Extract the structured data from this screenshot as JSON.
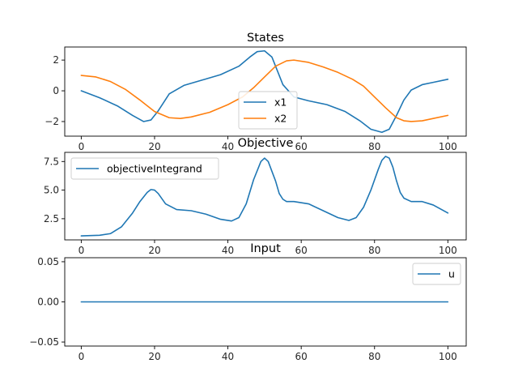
{
  "chart_data": [
    {
      "type": "line",
      "title": "States",
      "xlabel": "",
      "ylabel": "",
      "xlim": [
        -4.5,
        105
      ],
      "ylim": [
        -2.95,
        2.85
      ],
      "xticks": [
        0,
        20,
        40,
        60,
        80,
        100
      ],
      "yticks": [
        -2,
        0,
        2
      ],
      "legend": "bottom-center",
      "grid": false,
      "series": [
        {
          "name": "x1",
          "color": "#1f77b4",
          "x": [
            0,
            5,
            10,
            14,
            17,
            19,
            21,
            24,
            28,
            33,
            38,
            43,
            46,
            48,
            50,
            52,
            55,
            58,
            62,
            67,
            72,
            76,
            79,
            82,
            84,
            86,
            88,
            90,
            93,
            96,
            100
          ],
          "y": [
            0,
            -0.45,
            -1.0,
            -1.6,
            -2.0,
            -1.9,
            -1.3,
            -0.2,
            0.35,
            0.7,
            1.05,
            1.6,
            2.2,
            2.55,
            2.6,
            2.2,
            0.4,
            -0.4,
            -0.65,
            -0.9,
            -1.35,
            -1.95,
            -2.5,
            -2.7,
            -2.5,
            -1.6,
            -0.6,
            0.05,
            0.4,
            0.55,
            0.75
          ]
        },
        {
          "name": "x2",
          "color": "#ff7f0e",
          "x": [
            0,
            4,
            8,
            12,
            16,
            20,
            24,
            27,
            30,
            35,
            40,
            44,
            47,
            50,
            53,
            56,
            58,
            62,
            66,
            70,
            74,
            77,
            80,
            83,
            86,
            88,
            90,
            93,
            96,
            100
          ],
          "y": [
            1.0,
            0.9,
            0.6,
            0.1,
            -0.6,
            -1.35,
            -1.75,
            -1.8,
            -1.7,
            -1.4,
            -0.9,
            -0.4,
            0.2,
            0.9,
            1.6,
            1.95,
            2.0,
            1.85,
            1.55,
            1.2,
            0.75,
            0.3,
            -0.4,
            -1.1,
            -1.75,
            -1.95,
            -2.0,
            -1.95,
            -1.8,
            -1.6
          ]
        }
      ]
    },
    {
      "type": "line",
      "title": "Objective",
      "xlabel": "",
      "ylabel": "",
      "xlim": [
        -4.5,
        105
      ],
      "ylim": [
        0.65,
        8.3
      ],
      "xticks": [
        0,
        20,
        40,
        60,
        80,
        100
      ],
      "yticks": [
        2.5,
        5.0,
        7.5
      ],
      "legend": "top-left",
      "grid": false,
      "series": [
        {
          "name": "objectiveIntegrand",
          "color": "#1f77b4",
          "x": [
            0,
            5,
            8,
            11,
            14,
            16,
            18,
            19,
            20,
            21,
            23,
            26,
            30,
            34,
            38,
            41,
            43,
            45,
            47,
            49,
            50,
            51,
            53,
            54,
            55,
            56,
            58,
            62,
            66,
            70,
            73,
            75,
            77,
            79,
            81,
            82,
            83,
            84,
            85,
            86,
            87,
            88,
            90,
            93,
            96,
            100
          ],
          "y": [
            1.0,
            1.05,
            1.2,
            1.8,
            3.0,
            4.0,
            4.8,
            5.05,
            5.0,
            4.7,
            3.8,
            3.3,
            3.2,
            2.9,
            2.45,
            2.3,
            2.6,
            3.8,
            5.9,
            7.5,
            7.8,
            7.5,
            5.8,
            4.7,
            4.2,
            4.0,
            4.0,
            3.8,
            3.2,
            2.6,
            2.35,
            2.6,
            3.5,
            5.0,
            6.8,
            7.6,
            7.95,
            7.8,
            7.0,
            5.8,
            4.8,
            4.3,
            4.0,
            4.0,
            3.7,
            3.0
          ]
        }
      ]
    },
    {
      "type": "line",
      "title": "Input",
      "xlabel": "",
      "ylabel": "",
      "xlim": [
        -4.5,
        105
      ],
      "ylim": [
        -0.055,
        0.055
      ],
      "xticks": [
        0,
        20,
        40,
        60,
        80,
        100
      ],
      "yticks": [
        -0.05,
        0.0,
        0.05
      ],
      "ytick_labels": [
        "−0.05",
        "0.00",
        "0.05"
      ],
      "legend": "top-right",
      "grid": false,
      "series": [
        {
          "name": "u",
          "color": "#1f77b4",
          "x": [
            0,
            100
          ],
          "y": [
            0,
            0
          ]
        }
      ]
    }
  ]
}
